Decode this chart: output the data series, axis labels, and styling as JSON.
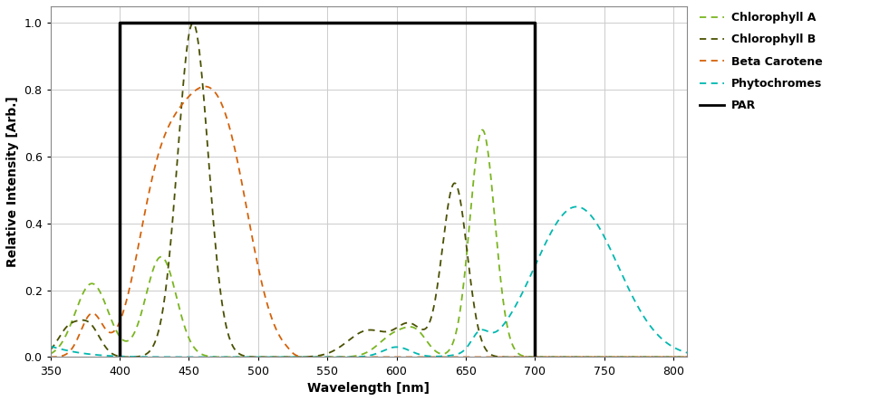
{
  "xlabel": "Wavelength [nm]",
  "ylabel": "Relative Intensity [Arb.]",
  "xlim": [
    350,
    810
  ],
  "ylim": [
    0,
    1.05
  ],
  "xticks": [
    350,
    400,
    450,
    500,
    550,
    600,
    650,
    700,
    750,
    800
  ],
  "yticks": [
    0,
    0.2,
    0.4,
    0.6,
    0.8,
    1
  ],
  "PAR_range": [
    400,
    700
  ],
  "colors": {
    "chlorophyll_a": "#7ab520",
    "chlorophyll_b": "#4a5000",
    "beta_carotene": "#d4620a",
    "phytochromes": "#00b8b0",
    "PAR": "#000000"
  },
  "legend_labels": [
    "Chlorophyll A",
    "Chlorophyll B",
    "Beta Carotene",
    "Phytochromes",
    "PAR"
  ],
  "background_color": "#ffffff",
  "grid_color": "#cccccc"
}
